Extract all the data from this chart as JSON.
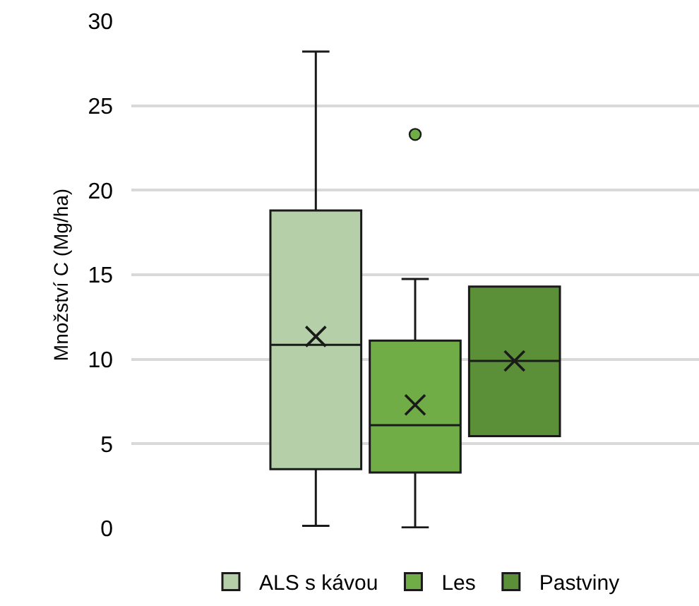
{
  "chart_data": {
    "type": "box",
    "ylabel": "Množství C (Mg/ha)",
    "categories": [
      null
    ],
    "ylim": [
      0,
      30
    ],
    "yticks": [
      0,
      5,
      10,
      15,
      20,
      25,
      30
    ],
    "grid": "y",
    "legend": "bottom",
    "series": [
      {
        "name": "ALS s kávou",
        "color": "#b5cfa8",
        "boxes": [
          {
            "low": 0.15,
            "q1": 3.5,
            "median": 10.85,
            "q3": 18.8,
            "high": 28.2,
            "mean": 11.35
          }
        ]
      },
      {
        "name": "Les",
        "color": "#70ad47",
        "boxes": [
          {
            "low": 0.05,
            "q1": 3.3,
            "median": 6.1,
            "q3": 11.1,
            "high": 14.75,
            "mean": 7.3,
            "outliers": [
              23.3
            ]
          }
        ]
      },
      {
        "name": "Pastviny",
        "color": "#5b9038",
        "boxes": [
          {
            "low": 5.45,
            "q1": 5.45,
            "median": 9.9,
            "q3": 14.3,
            "high": 14.3,
            "mean": 9.9
          }
        ]
      }
    ]
  }
}
